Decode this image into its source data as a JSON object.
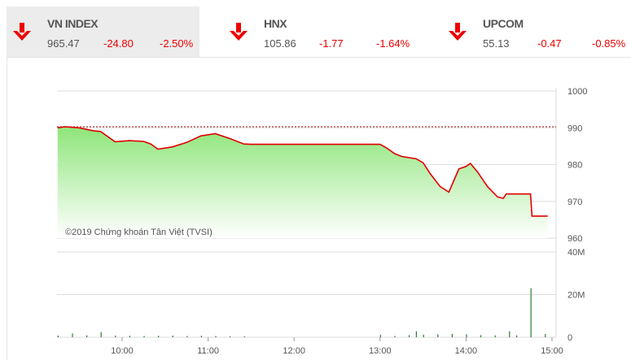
{
  "tabs": [
    {
      "name": "VN INDEX",
      "value": "965.47",
      "change": "-24.80",
      "percent": "-2.50%",
      "active": true,
      "icon": "arrow-down-icon"
    },
    {
      "name": "HNX",
      "value": "105.86",
      "change": "-1.77",
      "percent": "-1.64%",
      "active": false,
      "icon": "arrow-down-icon"
    },
    {
      "name": "UPCOM",
      "value": "55.13",
      "change": "-0.47",
      "percent": "-0.85%",
      "active": false,
      "icon": "arrow-down-icon"
    }
  ],
  "colors": {
    "down": "#e00000",
    "line": "#e00000",
    "fill_top": "#8ee57a",
    "volume": "#2e7d32",
    "reference": "#a00000"
  },
  "chart_data": [
    {
      "type": "area",
      "watermark": "©2019 Chứng khoán Tân Việt (TVSI)",
      "reference_value": 990.27,
      "ylim": [
        960,
        1000
      ],
      "yticks": [
        "1000",
        "990",
        "980",
        "970",
        "960"
      ],
      "x": [
        "09:15",
        "09:20",
        "09:30",
        "09:40",
        "09:45",
        "09:55",
        "10:05",
        "10:15",
        "10:20",
        "10:25",
        "10:35",
        "10:45",
        "10:55",
        "11:05",
        "11:15",
        "11:25",
        "11:30",
        "13:00",
        "13:05",
        "13:10",
        "13:15",
        "13:25",
        "13:30",
        "13:35",
        "13:42",
        "13:48",
        "13:55",
        "14:00",
        "14:03",
        "14:08",
        "14:15",
        "14:22",
        "14:26",
        "14:28",
        "14:45",
        "14:46",
        "14:57"
      ],
      "values": [
        990.0,
        990.3,
        990.0,
        989.2,
        989.0,
        986.2,
        986.5,
        986.3,
        985.6,
        984.2,
        984.8,
        986.0,
        987.8,
        988.4,
        987.1,
        985.6,
        985.5,
        985.5,
        984.4,
        983.0,
        982.2,
        981.6,
        980.5,
        977.5,
        974.0,
        972.5,
        978.8,
        979.5,
        980.3,
        978.0,
        974.0,
        971.2,
        970.8,
        972.0,
        972.0,
        966.0,
        966.0
      ]
    },
    {
      "type": "bar",
      "ylim": [
        0,
        40
      ],
      "yunit": "M",
      "yticks": [
        "40M",
        "20M",
        "0"
      ],
      "xticks": [
        "10:00",
        "11:00",
        "12:00",
        "13:00",
        "14:00",
        "15:00"
      ],
      "x": [
        "09:15",
        "09:25",
        "09:35",
        "09:45",
        "09:55",
        "10:05",
        "10:15",
        "10:25",
        "10:35",
        "10:45",
        "10:55",
        "11:05",
        "11:15",
        "11:25",
        "13:00",
        "13:10",
        "13:20",
        "13:25",
        "13:30",
        "13:40",
        "13:50",
        "14:00",
        "14:10",
        "14:20",
        "14:30",
        "14:35",
        "14:45",
        "14:55"
      ],
      "values": [
        0.8,
        1.8,
        0.9,
        2.4,
        0.8,
        0.7,
        0.6,
        0.7,
        0.8,
        0.6,
        0.7,
        0.6,
        0.5,
        0.4,
        1.2,
        0.6,
        1.0,
        2.8,
        1.2,
        1.4,
        1.6,
        1.4,
        1.0,
        0.9,
        2.8,
        0.9,
        23.0,
        1.5
      ]
    }
  ]
}
